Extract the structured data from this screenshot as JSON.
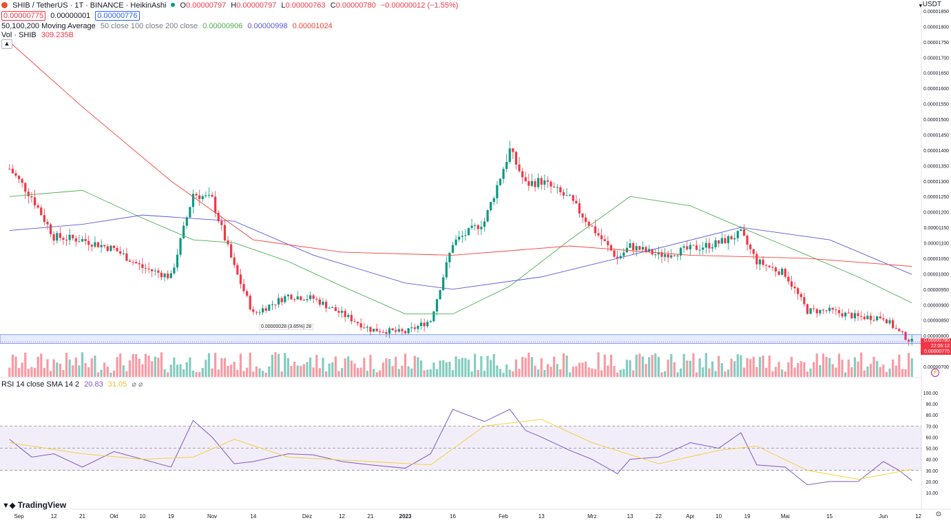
{
  "header": {
    "symbol_icon": "shib-logo-icon",
    "title": "SHIB / TetherUS · 1T · BINANCE · HeikinAshi",
    "status_dot": "market-open-dot-icon",
    "ohlc": {
      "O": "0.00000797",
      "H": "0.00000797",
      "L": "0.00000763",
      "C": "0.00000780",
      "change": "−0.00000012 (−1.55%)"
    },
    "bid": "0.00000775",
    "spread": "0.00000001",
    "ask": "0.00000776",
    "ma_label": "50,100,200 Moving Average",
    "ma_params": "50 close 100 close 200 close",
    "ma_values": [
      "0.00000906",
      "0.00000998",
      "0.00001024"
    ],
    "vol_label": "Vol · SHIB",
    "vol_value": "309.235B",
    "rsi_label": "RSI 14 close SMA 14 2",
    "rsi_value": "20.83",
    "rsi_sma_value": "31.05",
    "rsi_extra": "⌀ ⌀"
  },
  "currency": "USDT",
  "logo_text": "TradingView",
  "measure_label": "0.00000028 (3.65%) 28",
  "price_tags": {
    "last": "0.00000780",
    "countdown": "22:06:12",
    "bid": "0.00000775"
  },
  "colors": {
    "up": "#089981",
    "down": "#f23645",
    "ma50": "#4caf50",
    "ma100": "#5b56d8",
    "ma200": "#f44336",
    "rsi": "#7e57c2",
    "rsi_sma": "#f4d03f"
  },
  "chart_data": {
    "type": "candlestick",
    "x_ticks": [
      "Sep",
      "12",
      "21",
      "Okt",
      "10",
      "19",
      "Nov",
      "14",
      "Dez",
      "12",
      "21",
      "2023",
      "16",
      "Feb",
      "13",
      "Mrz",
      "13",
      "22",
      "Apr",
      "10",
      "19",
      "Mai",
      "15",
      "Jun",
      "12"
    ],
    "y_ticks": [
      "0.00001850",
      "0.00001800",
      "0.00001750",
      "0.00001700",
      "0.00001650",
      "0.00001600",
      "0.00001550",
      "0.00001500",
      "0.00001450",
      "0.00001400",
      "0.00001350",
      "0.00001300",
      "0.00001250",
      "0.00001200",
      "0.00001150",
      "0.00001100",
      "0.00001050",
      "0.00001000",
      "0.00000950",
      "0.00000900",
      "0.00000850",
      "0.00000800",
      "0.00000750",
      "0.00000700"
    ],
    "ylim": [
      7e-06,
      1.85e-05
    ],
    "rsi_ticks": [
      "100.00",
      "90.00",
      "80.00",
      "70.00",
      "60.00",
      "50.00",
      "40.00",
      "30.00",
      "20.00",
      "10.00"
    ],
    "rsi_ylim": [
      10,
      100
    ],
    "close_series": [
      {
        "date": "2022-08-29",
        "close": 1.34e-05
      },
      {
        "date": "2022-09-05",
        "close": 1.25e-05
      },
      {
        "date": "2022-09-12",
        "close": 1.12e-05
      },
      {
        "date": "2022-09-21",
        "close": 1.11e-05
      },
      {
        "date": "2022-10-01",
        "close": 1.08e-05
      },
      {
        "date": "2022-10-10",
        "close": 1.02e-05
      },
      {
        "date": "2022-10-19",
        "close": 9.9e-06
      },
      {
        "date": "2022-10-26",
        "close": 1.26e-05
      },
      {
        "date": "2022-11-01",
        "close": 1.24e-05
      },
      {
        "date": "2022-11-08",
        "close": 1.02e-05
      },
      {
        "date": "2022-11-14",
        "close": 8.7e-06
      },
      {
        "date": "2022-11-25",
        "close": 9.3e-06
      },
      {
        "date": "2022-12-03",
        "close": 9.2e-06
      },
      {
        "date": "2022-12-12",
        "close": 8.7e-06
      },
      {
        "date": "2022-12-21",
        "close": 8.2e-06
      },
      {
        "date": "2023-01-01",
        "close": 8.1e-06
      },
      {
        "date": "2023-01-09",
        "close": 8.5e-06
      },
      {
        "date": "2023-01-16",
        "close": 1.1e-05
      },
      {
        "date": "2023-01-26",
        "close": 1.17e-05
      },
      {
        "date": "2023-02-03",
        "close": 1.4e-05
      },
      {
        "date": "2023-02-08",
        "close": 1.29e-05
      },
      {
        "date": "2023-02-13",
        "close": 1.3e-05
      },
      {
        "date": "2023-02-22",
        "close": 1.24e-05
      },
      {
        "date": "2023-03-01",
        "close": 1.15e-05
      },
      {
        "date": "2023-03-09",
        "close": 1.05e-05
      },
      {
        "date": "2023-03-13",
        "close": 1.09e-05
      },
      {
        "date": "2023-03-22",
        "close": 1.06e-05
      },
      {
        "date": "2023-04-01",
        "close": 1.08e-05
      },
      {
        "date": "2023-04-10",
        "close": 1.1e-05
      },
      {
        "date": "2023-04-17",
        "close": 1.13e-05
      },
      {
        "date": "2023-04-22",
        "close": 1.04e-05
      },
      {
        "date": "2023-05-01",
        "close": 1e-05
      },
      {
        "date": "2023-05-08",
        "close": 8.8e-06
      },
      {
        "date": "2023-05-15",
        "close": 8.8e-06
      },
      {
        "date": "2023-05-24",
        "close": 8.6e-06
      },
      {
        "date": "2023-06-01",
        "close": 8.6e-06
      },
      {
        "date": "2023-06-06",
        "close": 8.1e-06
      },
      {
        "date": "2023-06-10",
        "close": 7.8e-06
      }
    ],
    "ma50": [
      {
        "date": "2022-08-29",
        "v": 1.25e-05
      },
      {
        "date": "2022-09-21",
        "v": 1.27e-05
      },
      {
        "date": "2022-10-10",
        "v": 1.18e-05
      },
      {
        "date": "2022-10-26",
        "v": 1.11e-05
      },
      {
        "date": "2022-11-08",
        "v": 1.1e-05
      },
      {
        "date": "2022-11-25",
        "v": 1.04e-05
      },
      {
        "date": "2022-12-12",
        "v": 9.6e-06
      },
      {
        "date": "2023-01-01",
        "v": 8.7e-06
      },
      {
        "date": "2023-01-16",
        "v": 8.7e-06
      },
      {
        "date": "2023-02-03",
        "v": 9.6e-06
      },
      {
        "date": "2023-02-22",
        "v": 1.11e-05
      },
      {
        "date": "2023-03-13",
        "v": 1.25e-05
      },
      {
        "date": "2023-04-01",
        "v": 1.22e-05
      },
      {
        "date": "2023-04-17",
        "v": 1.15e-05
      },
      {
        "date": "2023-05-08",
        "v": 1.06e-05
      },
      {
        "date": "2023-05-24",
        "v": 9.9e-06
      },
      {
        "date": "2023-06-10",
        "v": 9.06e-06
      }
    ],
    "ma100": [
      {
        "date": "2022-08-29",
        "v": 1.14e-05
      },
      {
        "date": "2022-09-21",
        "v": 1.16e-05
      },
      {
        "date": "2022-10-10",
        "v": 1.19e-05
      },
      {
        "date": "2022-11-08",
        "v": 1.17e-05
      },
      {
        "date": "2022-12-03",
        "v": 1.06e-05
      },
      {
        "date": "2023-01-01",
        "v": 9.7e-06
      },
      {
        "date": "2023-01-16",
        "v": 9.5e-06
      },
      {
        "date": "2023-02-13",
        "v": 9.9e-06
      },
      {
        "date": "2023-03-13",
        "v": 1.06e-05
      },
      {
        "date": "2023-04-17",
        "v": 1.15e-05
      },
      {
        "date": "2023-05-15",
        "v": 1.11e-05
      },
      {
        "date": "2023-06-10",
        "v": 9.98e-06
      }
    ],
    "ma200": [
      {
        "date": "2022-08-29",
        "v": 1.75e-05
      },
      {
        "date": "2022-09-21",
        "v": 1.54e-05
      },
      {
        "date": "2022-10-19",
        "v": 1.3e-05
      },
      {
        "date": "2022-11-14",
        "v": 1.11e-05
      },
      {
        "date": "2022-12-12",
        "v": 1.07e-05
      },
      {
        "date": "2023-01-16",
        "v": 1.06e-05
      },
      {
        "date": "2023-02-22",
        "v": 1.09e-05
      },
      {
        "date": "2023-04-01",
        "v": 1.06e-05
      },
      {
        "date": "2023-05-08",
        "v": 1.05e-05
      },
      {
        "date": "2023-06-10",
        "v": 1.024e-05
      }
    ],
    "rsi_series": [
      {
        "date": "2022-08-29",
        "v": 58
      },
      {
        "date": "2022-09-05",
        "v": 42
      },
      {
        "date": "2022-09-12",
        "v": 45
      },
      {
        "date": "2022-09-21",
        "v": 33
      },
      {
        "date": "2022-10-01",
        "v": 47
      },
      {
        "date": "2022-10-10",
        "v": 40
      },
      {
        "date": "2022-10-19",
        "v": 33
      },
      {
        "date": "2022-10-26",
        "v": 75
      },
      {
        "date": "2022-11-01",
        "v": 60
      },
      {
        "date": "2022-11-08",
        "v": 36
      },
      {
        "date": "2022-11-14",
        "v": 38
      },
      {
        "date": "2022-11-25",
        "v": 45
      },
      {
        "date": "2022-12-03",
        "v": 44
      },
      {
        "date": "2022-12-12",
        "v": 38
      },
      {
        "date": "2022-12-21",
        "v": 35
      },
      {
        "date": "2023-01-01",
        "v": 32
      },
      {
        "date": "2023-01-09",
        "v": 45
      },
      {
        "date": "2023-01-16",
        "v": 85
      },
      {
        "date": "2023-01-26",
        "v": 74
      },
      {
        "date": "2023-02-03",
        "v": 85
      },
      {
        "date": "2023-02-08",
        "v": 66
      },
      {
        "date": "2023-02-13",
        "v": 60
      },
      {
        "date": "2023-02-22",
        "v": 48
      },
      {
        "date": "2023-03-01",
        "v": 40
      },
      {
        "date": "2023-03-09",
        "v": 27
      },
      {
        "date": "2023-03-13",
        "v": 40
      },
      {
        "date": "2023-03-22",
        "v": 42
      },
      {
        "date": "2023-04-01",
        "v": 55
      },
      {
        "date": "2023-04-10",
        "v": 50
      },
      {
        "date": "2023-04-17",
        "v": 64
      },
      {
        "date": "2023-04-22",
        "v": 35
      },
      {
        "date": "2023-05-01",
        "v": 33
      },
      {
        "date": "2023-05-08",
        "v": 17
      },
      {
        "date": "2023-05-15",
        "v": 20
      },
      {
        "date": "2023-05-24",
        "v": 20
      },
      {
        "date": "2023-06-01",
        "v": 38
      },
      {
        "date": "2023-06-06",
        "v": 30
      },
      {
        "date": "2023-06-10",
        "v": 20.83
      }
    ],
    "rsi_sma_series": [
      {
        "date": "2022-08-29",
        "v": 55
      },
      {
        "date": "2022-09-21",
        "v": 45
      },
      {
        "date": "2022-10-10",
        "v": 40
      },
      {
        "date": "2022-10-26",
        "v": 42
      },
      {
        "date": "2022-11-08",
        "v": 58
      },
      {
        "date": "2022-11-25",
        "v": 42
      },
      {
        "date": "2022-12-21",
        "v": 38
      },
      {
        "date": "2023-01-09",
        "v": 35
      },
      {
        "date": "2023-01-26",
        "v": 70
      },
      {
        "date": "2023-02-13",
        "v": 76
      },
      {
        "date": "2023-03-01",
        "v": 55
      },
      {
        "date": "2023-03-22",
        "v": 36
      },
      {
        "date": "2023-04-10",
        "v": 48
      },
      {
        "date": "2023-04-22",
        "v": 52
      },
      {
        "date": "2023-05-08",
        "v": 30
      },
      {
        "date": "2023-05-24",
        "v": 22
      },
      {
        "date": "2023-06-10",
        "v": 31.05
      }
    ],
    "rsi_bands": {
      "upper": 70,
      "middle": 50,
      "lower": 30
    }
  }
}
